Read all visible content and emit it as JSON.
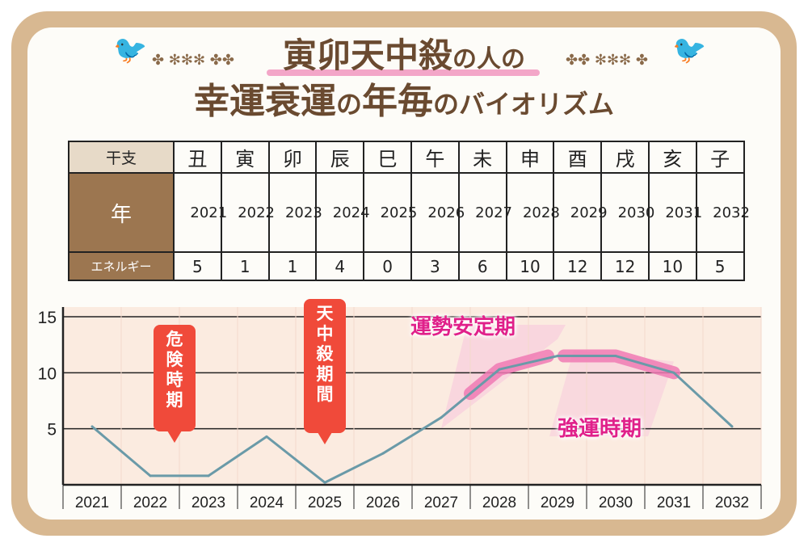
{
  "title": {
    "line1_main": "寅卯天中殺",
    "line1_tail": "の人の",
    "line2_a": "幸運衰運",
    "line2_b": "の",
    "line2_c": "年毎",
    "line2_d": "のバイオリズム"
  },
  "table": {
    "header_label": "干支",
    "year_label": "年",
    "energy_label": "エネルギー",
    "columns": [
      {
        "eto": "丑",
        "year": "2021",
        "energy": "5"
      },
      {
        "eto": "寅",
        "year": "2022",
        "energy": "1"
      },
      {
        "eto": "卯",
        "year": "2023",
        "energy": "1"
      },
      {
        "eto": "辰",
        "year": "2024",
        "energy": "4"
      },
      {
        "eto": "巳",
        "year": "2025",
        "energy": "0"
      },
      {
        "eto": "午",
        "year": "2026",
        "energy": "3"
      },
      {
        "eto": "未",
        "year": "2027",
        "energy": "6"
      },
      {
        "eto": "申",
        "year": "2028",
        "energy": "10"
      },
      {
        "eto": "酉",
        "year": "2029",
        "energy": "12"
      },
      {
        "eto": "戌",
        "year": "2030",
        "energy": "12"
      },
      {
        "eto": "亥",
        "year": "2031",
        "energy": "10"
      },
      {
        "eto": "子",
        "year": "2032",
        "energy": "5"
      }
    ]
  },
  "chart_data": {
    "type": "line",
    "x": [
      "2021",
      "2022",
      "2023",
      "2024",
      "2025",
      "2026",
      "2027",
      "2028",
      "2029",
      "2030",
      "2031",
      "2032"
    ],
    "y": [
      5.2,
      0.8,
      0.8,
      4.3,
      0.2,
      2.8,
      6.0,
      10.3,
      11.5,
      11.5,
      10.0,
      5.2
    ],
    "yticks": [
      5,
      10,
      15
    ],
    "ylim": [
      0,
      15
    ],
    "grid": true,
    "line_color": "#6a9aa8",
    "highlight_color": "#f07ab4",
    "annotations": {
      "danger": "危険時期",
      "tenchusatsu": "天中殺期間",
      "stable": "運勢安定期",
      "strong": "強運時期"
    }
  }
}
